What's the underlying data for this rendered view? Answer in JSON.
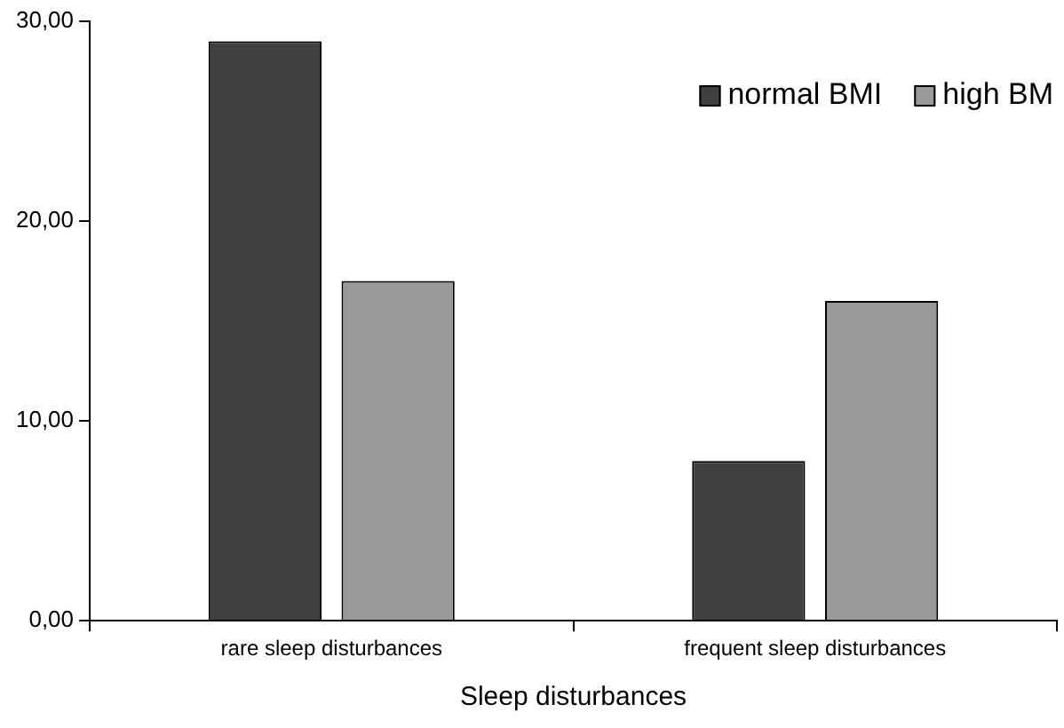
{
  "chart_data": {
    "type": "bar",
    "xlabel": "Sleep disturbances",
    "categories": [
      "rare sleep disturbances",
      "frequent sleep disturbances"
    ],
    "series": [
      {
        "name": "normal BMI",
        "color": "#404040",
        "values": [
          29,
          8
        ]
      },
      {
        "name": "high BM",
        "color": "#999999",
        "values": [
          17,
          16
        ]
      }
    ],
    "ylim": [
      0,
      30
    ],
    "yticks": [
      {
        "value": 0,
        "label": "0,00"
      },
      {
        "value": 10,
        "label": "10,00"
      },
      {
        "value": 20,
        "label": "20,00"
      },
      {
        "value": 30,
        "label": "30,00"
      }
    ],
    "grid": false,
    "legend": "top right"
  }
}
